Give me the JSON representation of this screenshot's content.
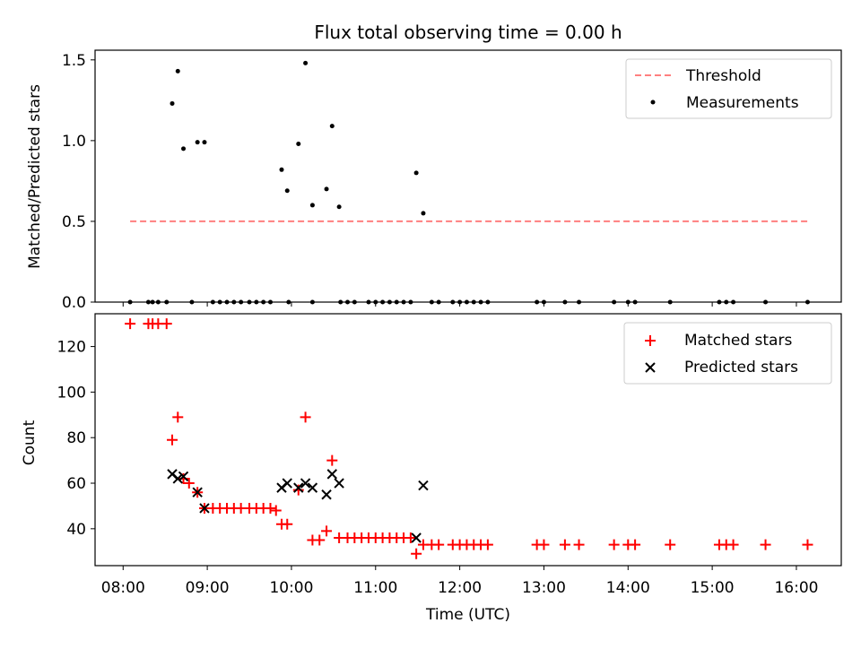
{
  "chart_data": [
    {
      "type": "scatter",
      "title": "Flux total observing time = 0.00 h",
      "xlabel": "",
      "ylabel": "Matched/Predicted stars",
      "ylim": [
        0,
        1.56
      ],
      "yticks": [
        0.0,
        0.5,
        1.0,
        1.5
      ],
      "ytick_labels": [
        "0.0",
        "0.5",
        "1.0",
        "1.5"
      ],
      "xlim": [
        "07:40",
        "16:32"
      ],
      "grid": false,
      "legend_position": "top-right",
      "threshold": {
        "name": "Threshold",
        "value": 0.5,
        "x_start": "08:05",
        "x_end": "16:08",
        "color": "#ff7f7f"
      },
      "series": [
        {
          "name": "Measurements",
          "color": "#000000",
          "points": [
            [
              "08:05",
              0
            ],
            [
              "08:18",
              0
            ],
            [
              "08:21",
              0
            ],
            [
              "08:25",
              0
            ],
            [
              "08:31",
              0
            ],
            [
              "08:49",
              0
            ],
            [
              "09:04",
              0
            ],
            [
              "09:09",
              0
            ],
            [
              "09:14",
              0
            ],
            [
              "09:19",
              0
            ],
            [
              "09:24",
              0
            ],
            [
              "09:30",
              0
            ],
            [
              "09:35",
              0
            ],
            [
              "09:40",
              0
            ],
            [
              "09:45",
              0
            ],
            [
              "09:58",
              0
            ],
            [
              "10:15",
              0
            ],
            [
              "10:35",
              0
            ],
            [
              "10:40",
              0
            ],
            [
              "10:45",
              0
            ],
            [
              "10:55",
              0
            ],
            [
              "11:00",
              0
            ],
            [
              "11:05",
              0
            ],
            [
              "11:10",
              0
            ],
            [
              "11:15",
              0
            ],
            [
              "11:20",
              0
            ],
            [
              "11:25",
              0
            ],
            [
              "11:40",
              0
            ],
            [
              "11:45",
              0
            ],
            [
              "11:55",
              0
            ],
            [
              "12:00",
              0
            ],
            [
              "12:05",
              0
            ],
            [
              "12:10",
              0
            ],
            [
              "12:15",
              0
            ],
            [
              "12:20",
              0
            ],
            [
              "12:55",
              0
            ],
            [
              "13:00",
              0
            ],
            [
              "13:15",
              0
            ],
            [
              "13:25",
              0
            ],
            [
              "13:50",
              0
            ],
            [
              "14:00",
              0
            ],
            [
              "14:05",
              0
            ],
            [
              "14:30",
              0
            ],
            [
              "15:05",
              0
            ],
            [
              "15:10",
              0
            ],
            [
              "15:15",
              0
            ],
            [
              "15:38",
              0
            ],
            [
              "16:08",
              0
            ],
            [
              "08:35",
              1.23
            ],
            [
              "08:39",
              1.43
            ],
            [
              "08:43",
              0.95
            ],
            [
              "08:53",
              0.99
            ],
            [
              "08:58",
              0.99
            ],
            [
              "09:53",
              0.82
            ],
            [
              "09:57",
              0.69
            ],
            [
              "10:05",
              0.98
            ],
            [
              "10:10",
              1.48
            ],
            [
              "10:15",
              0.6
            ],
            [
              "10:25",
              0.7
            ],
            [
              "10:29",
              1.09
            ],
            [
              "10:34",
              0.59
            ],
            [
              "11:29",
              0.8
            ],
            [
              "11:34",
              0.55
            ]
          ]
        }
      ]
    },
    {
      "type": "scatter",
      "title": "",
      "xlabel": "Time (UTC)",
      "ylabel": "Count",
      "ylim": [
        23.8,
        134.4
      ],
      "yticks": [
        40,
        60,
        80,
        100,
        120
      ],
      "ytick_labels": [
        "40",
        "60",
        "80",
        "100",
        "120"
      ],
      "xlim": [
        "07:40",
        "16:32"
      ],
      "xticks": [
        "08:00",
        "09:00",
        "10:00",
        "11:00",
        "12:00",
        "13:00",
        "14:00",
        "15:00",
        "16:00"
      ],
      "xtick_labels": [
        "08:00",
        "09:00",
        "10:00",
        "11:00",
        "12:00",
        "13:00",
        "14:00",
        "15:00",
        "16:00"
      ],
      "grid": false,
      "legend_position": "top-right",
      "series": [
        {
          "name": "Matched stars",
          "color": "#ff0000",
          "marker": "+",
          "points": [
            [
              "08:05",
              130
            ],
            [
              "08:18",
              130
            ],
            [
              "08:21",
              130
            ],
            [
              "08:25",
              130
            ],
            [
              "08:31",
              130
            ],
            [
              "08:35",
              79
            ],
            [
              "08:39",
              89
            ],
            [
              "08:43",
              62
            ],
            [
              "08:47",
              60
            ],
            [
              "08:53",
              56
            ],
            [
              "08:58",
              49
            ],
            [
              "09:04",
              49
            ],
            [
              "09:09",
              49
            ],
            [
              "09:14",
              49
            ],
            [
              "09:19",
              49
            ],
            [
              "09:24",
              49
            ],
            [
              "09:30",
              49
            ],
            [
              "09:35",
              49
            ],
            [
              "09:40",
              49
            ],
            [
              "09:45",
              49
            ],
            [
              "09:49",
              48
            ],
            [
              "09:53",
              42
            ],
            [
              "09:57",
              42
            ],
            [
              "10:05",
              57
            ],
            [
              "10:10",
              89
            ],
            [
              "10:15",
              35
            ],
            [
              "10:20",
              35
            ],
            [
              "10:25",
              39
            ],
            [
              "10:29",
              70
            ],
            [
              "10:34",
              36
            ],
            [
              "10:40",
              36
            ],
            [
              "10:45",
              36
            ],
            [
              "10:50",
              36
            ],
            [
              "10:55",
              36
            ],
            [
              "11:00",
              36
            ],
            [
              "11:05",
              36
            ],
            [
              "11:10",
              36
            ],
            [
              "11:15",
              36
            ],
            [
              "11:20",
              36
            ],
            [
              "11:25",
              36
            ],
            [
              "11:29",
              29
            ],
            [
              "11:34",
              33
            ],
            [
              "11:40",
              33
            ],
            [
              "11:45",
              33
            ],
            [
              "11:55",
              33
            ],
            [
              "12:00",
              33
            ],
            [
              "12:05",
              33
            ],
            [
              "12:10",
              33
            ],
            [
              "12:15",
              33
            ],
            [
              "12:20",
              33
            ],
            [
              "12:55",
              33
            ],
            [
              "13:00",
              33
            ],
            [
              "13:15",
              33
            ],
            [
              "13:25",
              33
            ],
            [
              "13:50",
              33
            ],
            [
              "14:00",
              33
            ],
            [
              "14:05",
              33
            ],
            [
              "14:30",
              33
            ],
            [
              "15:05",
              33
            ],
            [
              "15:10",
              33
            ],
            [
              "15:15",
              33
            ],
            [
              "15:38",
              33
            ],
            [
              "16:08",
              33
            ]
          ]
        },
        {
          "name": "Predicted stars",
          "color": "#000000",
          "marker": "x",
          "points": [
            [
              "08:35",
              64
            ],
            [
              "08:39",
              62
            ],
            [
              "08:43",
              63
            ],
            [
              "08:53",
              56
            ],
            [
              "08:58",
              49
            ],
            [
              "09:53",
              58
            ],
            [
              "09:57",
              60
            ],
            [
              "10:05",
              58
            ],
            [
              "10:10",
              60
            ],
            [
              "10:15",
              58
            ],
            [
              "10:25",
              55
            ],
            [
              "10:29",
              64
            ],
            [
              "10:34",
              60
            ],
            [
              "11:29",
              36
            ],
            [
              "11:34",
              59
            ]
          ]
        }
      ]
    }
  ]
}
